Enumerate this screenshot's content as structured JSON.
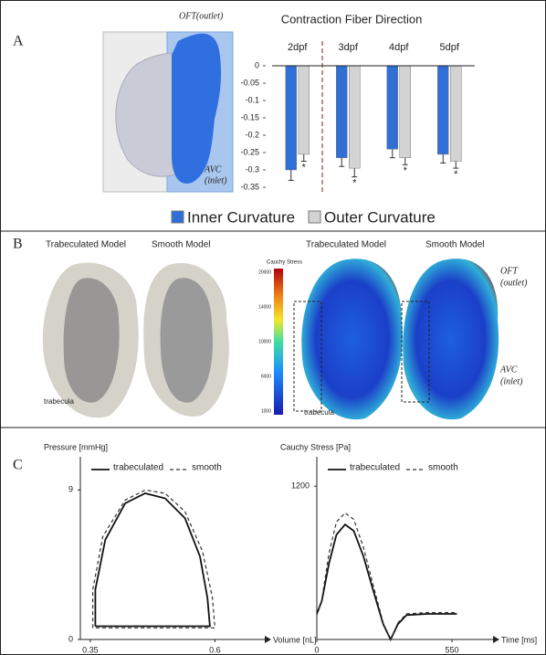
{
  "panels": {
    "a": "A",
    "b": "B",
    "c": "C"
  },
  "panel_a": {
    "image_labels": [
      "OFT(outlet)",
      "AVC",
      "(inlet)"
    ]
  },
  "panel_b": {
    "left_titles": [
      "Trabeculated Model",
      "Smooth Model"
    ],
    "left_annotation": "trabecula",
    "colorbar_title": "Cauchy Stress",
    "colorbar_ticks": [
      "20000",
      "14000",
      "10000",
      "6000",
      "1000"
    ],
    "right_titles": [
      "Trabeculated Model",
      "Smooth Model"
    ],
    "right_annotations": [
      "OFT",
      "(outlet)",
      "AVC",
      "(inlet)",
      "trabecula"
    ]
  },
  "chart_data": [
    {
      "type": "bar",
      "title": "Contraction Fiber Direction",
      "categories": [
        "2dpf",
        "3dpf",
        "4dpf",
        "5dpf"
      ],
      "series": [
        {
          "name": "Inner Curvature",
          "color": "#2f6fd6",
          "values": [
            -0.3,
            -0.265,
            -0.24,
            -0.255
          ],
          "errors": [
            0.03,
            0.025,
            0.025,
            0.025
          ]
        },
        {
          "name": "Outer Curvature",
          "color": "#d3d3d3",
          "values": [
            -0.255,
            -0.295,
            -0.265,
            -0.275
          ],
          "errors": [
            0.02,
            0.025,
            0.02,
            0.02
          ],
          "annotations": [
            "*",
            "*",
            "*",
            "*"
          ]
        }
      ],
      "ylim": [
        -0.35,
        0
      ],
      "yticks": [
        0,
        -0.05,
        -0.1,
        -0.15,
        -0.2,
        -0.25,
        -0.3,
        -0.35
      ]
    },
    {
      "type": "line",
      "ylabel": "Pressure [mmHg]",
      "xlabel": "Volume [nL]",
      "xlim": [
        0.33,
        0.7
      ],
      "xticks": [
        0.35,
        0.6
      ],
      "ylim": [
        0,
        11
      ],
      "yticks": [
        0,
        9
      ],
      "series": [
        {
          "name": "trabeculated",
          "color": "#111111",
          "dash": false,
          "x": [
            0.36,
            0.36,
            0.38,
            0.42,
            0.46,
            0.5,
            0.54,
            0.57,
            0.585,
            0.59,
            0.36
          ],
          "values": [
            0.8,
            3,
            6,
            8.2,
            8.8,
            8.5,
            7.3,
            5,
            2.5,
            0.8,
            0.8
          ]
        },
        {
          "name": "smooth",
          "color": "#333333",
          "dash": true,
          "x": [
            0.355,
            0.355,
            0.375,
            0.42,
            0.46,
            0.5,
            0.54,
            0.575,
            0.595,
            0.6,
            0.355
          ],
          "values": [
            0.7,
            3,
            6.2,
            8.4,
            9,
            8.8,
            7.7,
            5.3,
            2.5,
            0.7,
            0.7
          ]
        }
      ]
    },
    {
      "type": "line",
      "ylabel": "Cauchy Stress [Pa]",
      "xlabel": "Time [ms]",
      "xlim": [
        0,
        717
      ],
      "xticks": [
        0,
        550
      ],
      "ylim": [
        0,
        1430
      ],
      "yticks": [
        1200
      ],
      "series": [
        {
          "name": "trabeculated",
          "color": "#111111",
          "dash": false,
          "x": [
            0,
            20,
            50,
            80,
            115,
            150,
            190,
            230,
            270,
            300,
            330,
            365,
            450,
            570
          ],
          "values": [
            200,
            300,
            600,
            820,
            900,
            850,
            650,
            380,
            120,
            0,
            120,
            190,
            200,
            200
          ]
        },
        {
          "name": "smooth",
          "color": "#333333",
          "dash": true,
          "x": [
            0,
            20,
            50,
            80,
            115,
            150,
            190,
            230,
            270,
            300,
            330,
            365,
            450,
            570
          ],
          "values": [
            190,
            310,
            680,
            920,
            990,
            940,
            720,
            420,
            130,
            0,
            130,
            200,
            210,
            210
          ]
        }
      ]
    }
  ]
}
